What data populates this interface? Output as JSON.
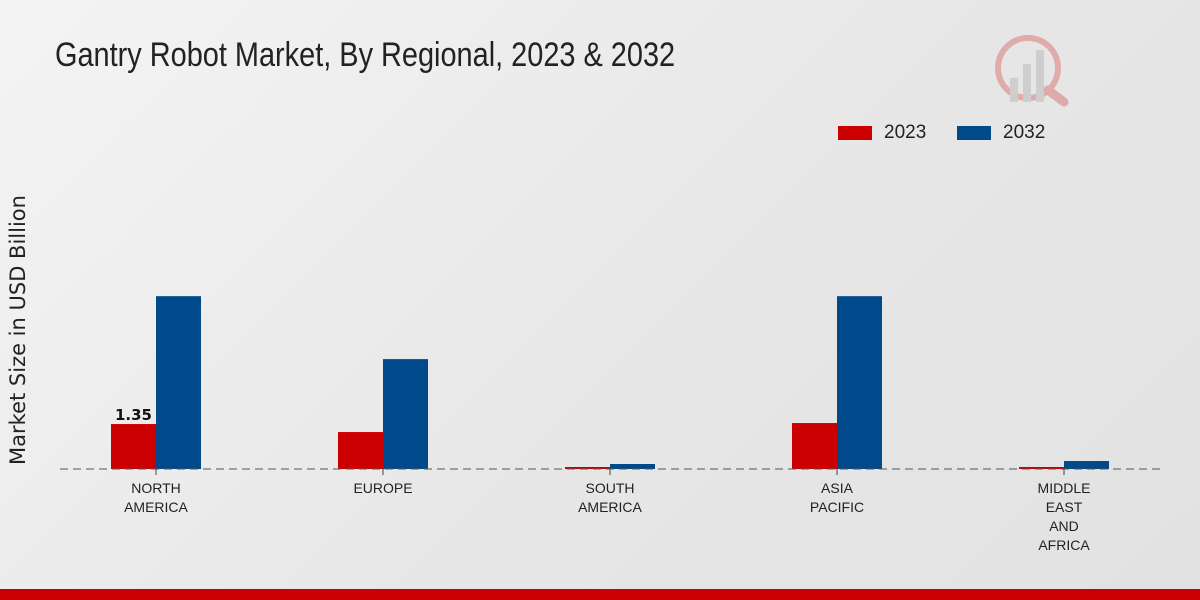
{
  "chart_data": {
    "type": "bar",
    "title": "Gantry Robot Market, By Regional, 2023 & 2032",
    "ylabel": "Market Size in USD Billion",
    "xlabel": "",
    "categories": [
      [
        "NORTH",
        "AMERICA"
      ],
      [
        "EUROPE"
      ],
      [
        "SOUTH",
        "AMERICA"
      ],
      [
        "ASIA",
        "PACIFIC"
      ],
      [
        "MIDDLE",
        "EAST",
        "AND",
        "AFRICA"
      ]
    ],
    "series": [
      {
        "name": "2023",
        "color": "#cc0000",
        "values": [
          1.35,
          1.11,
          0.06,
          1.38,
          0.06
        ]
      },
      {
        "name": "2032",
        "color": "#004a8c",
        "values": [
          5.19,
          3.3,
          0.15,
          5.19,
          0.24
        ]
      }
    ],
    "data_labels": [
      {
        "series": 0,
        "index": 0,
        "text": "1.35"
      }
    ],
    "legend_position": "top-right",
    "grid": false,
    "ylim": [
      0,
      6
    ]
  }
}
